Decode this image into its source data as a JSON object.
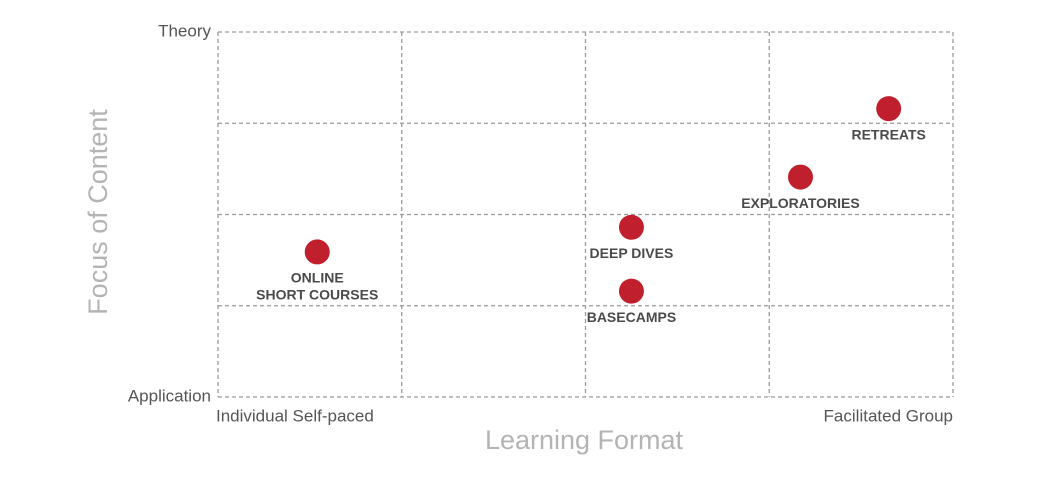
{
  "chart_data": {
    "type": "scatter",
    "xlabel": "Learning Format",
    "ylabel": "Focus of Content",
    "xlim": [
      0,
      4
    ],
    "ylim": [
      0,
      4
    ],
    "xticks": [
      {
        "value": 0,
        "label": "Individual Self-paced"
      },
      {
        "value": 4,
        "label": "Facilitated Group"
      }
    ],
    "yticks": [
      {
        "value": 0,
        "label": "Application"
      },
      {
        "value": 4,
        "label": "Theory"
      }
    ],
    "xgrid": [
      0,
      1,
      2,
      3,
      4
    ],
    "ygrid": [
      0,
      1,
      2,
      3,
      4
    ],
    "series": [
      {
        "color": "#c0202e",
        "labels": [
          [
            "ONLINE",
            "SHORT COURSES"
          ],
          [
            "DEEP DIVES"
          ],
          [
            "BASECAMPS"
          ],
          [
            "EXPLORATORIES"
          ],
          [
            "RETREATS"
          ]
        ],
        "x": [
          0.54,
          2.25,
          2.25,
          3.17,
          3.65
        ],
        "values": [
          1.59,
          1.86,
          1.16,
          2.41,
          3.16
        ]
      }
    ]
  }
}
